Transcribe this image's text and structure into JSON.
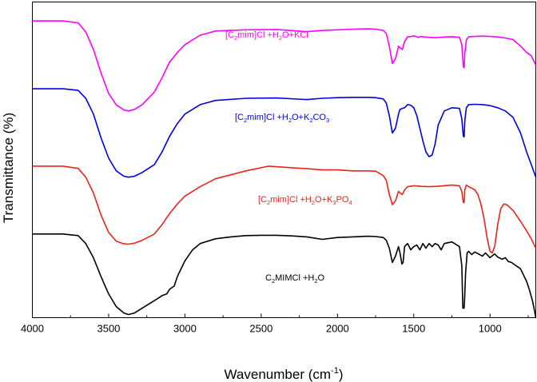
{
  "chart_data": {
    "type": "line",
    "title": "",
    "xlabel_main": "Wavenumber (cm",
    "xlabel_sup": "-1",
    "xlabel_close": ")",
    "ylabel": "Transmittance (%)",
    "xlim": [
      4000,
      700
    ],
    "x_reversed": true,
    "y_ticks_shown": false,
    "x_ticks": [
      4000,
      3500,
      3000,
      2500,
      2000,
      1500,
      1000
    ],
    "x_tick_labels": [
      "4000",
      "3500",
      "3000",
      "2500",
      "2000",
      "1500",
      "1000"
    ],
    "ylim": [
      0,
      100
    ],
    "series": [
      {
        "name": "[C2mim]Cl +H2O+KCl",
        "label_parts": [
          "[C",
          "2",
          "mim]Cl +H",
          "2",
          "O+KCl"
        ],
        "color": "#ff00ff",
        "x": [
          4000,
          3800,
          3700,
          3650,
          3600,
          3550,
          3500,
          3450,
          3400,
          3370,
          3330,
          3280,
          3200,
          3150,
          3100,
          3050,
          3000,
          2900,
          2800,
          2600,
          2400,
          2200,
          2100,
          2000,
          1900,
          1800,
          1750,
          1700,
          1680,
          1660,
          1640,
          1620,
          1600,
          1590,
          1575,
          1560,
          1540,
          1520,
          1500,
          1470,
          1450,
          1430,
          1400,
          1380,
          1350,
          1300,
          1250,
          1200,
          1185,
          1175,
          1170,
          1165,
          1155,
          1140,
          1100,
          1050,
          1000,
          950,
          900,
          850,
          800,
          760,
          730,
          700
        ],
        "y": [
          94.0,
          94.0,
          93.4,
          90.5,
          85.0,
          77.5,
          71.0,
          67.4,
          65.8,
          65.5,
          66.0,
          67.5,
          71.5,
          76.0,
          81.0,
          84.0,
          86.5,
          89.5,
          90.8,
          91.2,
          91.3,
          90.6,
          91.0,
          91.2,
          91.4,
          91.5,
          91.4,
          91.0,
          90.0,
          86.0,
          80.5,
          82.0,
          86.0,
          85.5,
          85.0,
          87.5,
          89.0,
          89.0,
          89.3,
          88.8,
          89.1,
          88.9,
          88.8,
          88.7,
          88.7,
          88.9,
          89.0,
          88.8,
          86.5,
          79.5,
          79.2,
          84.0,
          88.0,
          89.0,
          89.1,
          89.2,
          89.1,
          88.9,
          88.6,
          88.1,
          86.0,
          84.0,
          83.0,
          80.0
        ]
      },
      {
        "name": "[C2mim]Cl +H2O+K2CO3",
        "label_parts": [
          "[C",
          "2",
          "mim]Cl +H",
          "2",
          "O+K",
          "2",
          "CO",
          "3"
        ],
        "color": "#0000e0",
        "x": [
          4000,
          3800,
          3700,
          3650,
          3600,
          3550,
          3500,
          3450,
          3400,
          3370,
          3330,
          3280,
          3200,
          3150,
          3100,
          3050,
          3000,
          2900,
          2800,
          2600,
          2400,
          2200,
          2100,
          2000,
          1900,
          1800,
          1750,
          1700,
          1680,
          1660,
          1640,
          1620,
          1600,
          1590,
          1560,
          1540,
          1520,
          1500,
          1480,
          1460,
          1440,
          1420,
          1400,
          1380,
          1360,
          1340,
          1300,
          1250,
          1200,
          1185,
          1175,
          1170,
          1165,
          1155,
          1140,
          1100,
          1050,
          1000,
          950,
          900,
          850,
          800,
          760,
          730,
          700
        ],
        "y": [
          72.5,
          72.5,
          72.0,
          69.5,
          64.5,
          57.0,
          50.5,
          46.5,
          44.8,
          44.5,
          44.8,
          46.0,
          48.5,
          52.5,
          57.5,
          61.5,
          64.5,
          67.5,
          68.8,
          69.5,
          69.6,
          69.1,
          69.5,
          69.7,
          69.8,
          69.8,
          69.7,
          69.3,
          68.0,
          64.0,
          58.5,
          60.0,
          64.5,
          66.0,
          66.5,
          67.5,
          67.3,
          66.5,
          64.0,
          60.0,
          56.0,
          52.5,
          51.0,
          51.5,
          55.0,
          61.0,
          65.5,
          66.5,
          66.3,
          63.0,
          57.5,
          57.3,
          62.5,
          66.5,
          67.5,
          67.6,
          67.5,
          67.2,
          66.5,
          65.5,
          63.5,
          58.5,
          52.5,
          48.5,
          44.5
        ]
      },
      {
        "name": "[C2mim]Cl +H2O+K3PO4",
        "label_parts": [
          "[C",
          "2",
          "mim]Cl +H",
          "2",
          "O+K",
          "3",
          "PO",
          "4"
        ],
        "color": "#e8241c",
        "x": [
          4000,
          3800,
          3700,
          3650,
          3600,
          3550,
          3500,
          3450,
          3400,
          3370,
          3330,
          3280,
          3200,
          3150,
          3100,
          3050,
          3000,
          2900,
          2800,
          2600,
          2450,
          2300,
          2200,
          2100,
          2000,
          1900,
          1800,
          1750,
          1700,
          1680,
          1660,
          1640,
          1620,
          1600,
          1590,
          1575,
          1560,
          1540,
          1500,
          1450,
          1400,
          1350,
          1300,
          1250,
          1200,
          1185,
          1175,
          1170,
          1165,
          1155,
          1140,
          1100,
          1080,
          1060,
          1040,
          1020,
          1000,
          985,
          970,
          950,
          930,
          910,
          890,
          850,
          800,
          760,
          730,
          700
        ],
        "y": [
          48.0,
          48.0,
          47.3,
          44.5,
          39.5,
          32.5,
          27.0,
          24.2,
          23.4,
          23.3,
          23.6,
          24.5,
          26.5,
          29.5,
          33.0,
          36.0,
          38.5,
          41.5,
          44.0,
          46.5,
          48.0,
          47.5,
          47.2,
          46.8,
          46.8,
          46.5,
          46.5,
          46.4,
          45.0,
          43.5,
          39.0,
          35.8,
          37.0,
          40.0,
          39.5,
          39.0,
          40.5,
          41.5,
          41.8,
          41.6,
          41.5,
          41.6,
          41.8,
          42.0,
          41.8,
          40.0,
          36.5,
          36.5,
          40.5,
          42.0,
          41.5,
          40.5,
          39.0,
          36.0,
          31.5,
          25.5,
          21.0,
          20.5,
          22.5,
          29.5,
          34.5,
          36.0,
          35.8,
          34.0,
          30.5,
          27.5,
          25.0,
          22.0
        ]
      },
      {
        "name": "C2MIMCl +H2O",
        "label_parts": [
          "C",
          "2",
          "MIMCl +H",
          "2",
          "O"
        ],
        "color": "#000000",
        "x": [
          4000,
          3800,
          3700,
          3650,
          3600,
          3550,
          3500,
          3450,
          3400,
          3370,
          3330,
          3280,
          3230,
          3180,
          3150,
          3120,
          3100,
          3070,
          3050,
          3000,
          2950,
          2900,
          2800,
          2700,
          2600,
          2500,
          2400,
          2300,
          2200,
          2100,
          2000,
          1900,
          1800,
          1750,
          1700,
          1680,
          1660,
          1640,
          1620,
          1600,
          1590,
          1578,
          1570,
          1560,
          1540,
          1520,
          1500,
          1480,
          1460,
          1440,
          1420,
          1400,
          1380,
          1360,
          1340,
          1320,
          1300,
          1250,
          1200,
          1185,
          1178,
          1170,
          1166,
          1160,
          1150,
          1140,
          1120,
          1100,
          1080,
          1050,
          1030,
          1000,
          970,
          950,
          920,
          900,
          880,
          860,
          840,
          800,
          760,
          740,
          720,
          710,
          700
        ],
        "y": [
          26.5,
          26.5,
          26.0,
          23.5,
          19.0,
          13.0,
          7.5,
          3.5,
          1.5,
          1.0,
          1.5,
          3.0,
          4.5,
          6.0,
          7.0,
          7.5,
          9.0,
          10.0,
          13.0,
          18.0,
          21.5,
          23.5,
          25.0,
          25.6,
          26.0,
          26.1,
          26.1,
          25.9,
          25.6,
          24.8,
          25.4,
          25.6,
          25.8,
          25.7,
          25.4,
          24.5,
          22.0,
          17.5,
          19.5,
          22.5,
          20.5,
          17.0,
          17.5,
          22.5,
          23.5,
          21.5,
          22.5,
          23.0,
          21.5,
          23.5,
          22.0,
          23.5,
          22.5,
          23.5,
          23.0,
          21.5,
          23.5,
          24.0,
          22.5,
          16.5,
          3.0,
          3.0,
          6.5,
          14.5,
          20.5,
          21.0,
          20.0,
          20.8,
          20.3,
          19.5,
          20.5,
          19.0,
          20.2,
          19.2,
          18.5,
          19.0,
          17.8,
          17.5,
          16.8,
          15.5,
          11.5,
          8.5,
          5.0,
          2.5,
          0.0
        ]
      }
    ]
  }
}
